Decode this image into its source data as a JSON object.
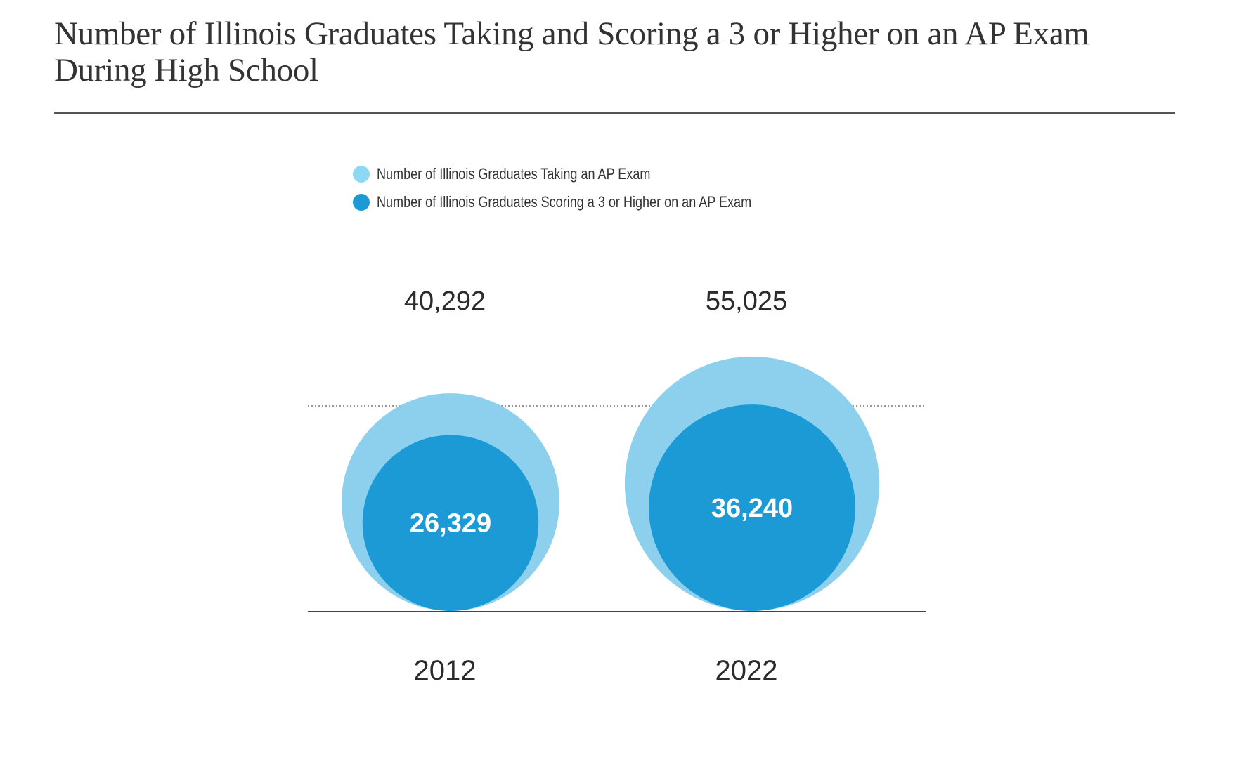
{
  "chart_data": {
    "type": "bubble",
    "title": "Number of Illinois Graduates Taking and Scoring a 3 or Higher on an AP Exam During High School",
    "categories": [
      "2012",
      "2022"
    ],
    "series": [
      {
        "name": "Number of Illinois Graduates Taking an AP Exam",
        "values": [
          40292,
          55025
        ],
        "labels": [
          "40,292",
          "55,025"
        ],
        "color": "#8dd0ee"
      },
      {
        "name": "Number of Illinois Graduates Scoring a 3 or Higher on an AP Exam",
        "values": [
          26329,
          36240
        ],
        "labels": [
          "26,329",
          "36,240"
        ],
        "color": "#1b9ad6"
      }
    ],
    "legend": "top",
    "grid": false
  }
}
